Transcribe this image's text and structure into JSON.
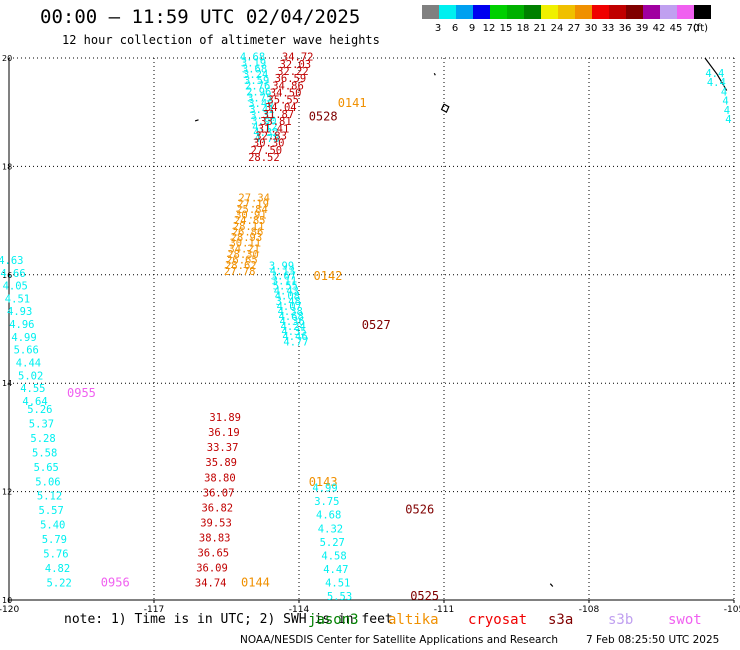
{
  "header": {
    "title": "00:00 — 11:59 UTC 02/04/2025",
    "subtitle": "12 hour collection of altimeter wave heights"
  },
  "color_scale": {
    "unit_label": "(ft)",
    "steps": [
      {
        "label": "3",
        "color": "#808080"
      },
      {
        "label": "6",
        "color": "#00f0f0"
      },
      {
        "label": "9",
        "color": "#00a0f0"
      },
      {
        "label": "12",
        "color": "#0000f0"
      },
      {
        "label": "15",
        "color": "#00d000"
      },
      {
        "label": "18",
        "color": "#00b000"
      },
      {
        "label": "21",
        "color": "#008000"
      },
      {
        "label": "24",
        "color": "#f0f000"
      },
      {
        "label": "27",
        "color": "#f0c000"
      },
      {
        "label": "30",
        "color": "#f09000"
      },
      {
        "label": "33",
        "color": "#f00000"
      },
      {
        "label": "36",
        "color": "#c00000"
      },
      {
        "label": "39",
        "color": "#800000"
      },
      {
        "label": "42",
        "color": "#a000a0"
      },
      {
        "label": "45",
        "color": "#c0a0f0"
      },
      {
        "label": "70",
        "color": "#f060f0"
      },
      {
        "label": "",
        "color": "#000000"
      }
    ]
  },
  "footer": {
    "note": "note:  1) Time is in UTC;  2) SWH is in feet",
    "credit": "NOAA/NESDIS Center for Satellite Applications and Research",
    "timestamp": "7 Feb 08:25:50 UTC 2025",
    "satellites": [
      {
        "name": "jason3",
        "color": "#008000"
      },
      {
        "name": "altika",
        "color": "#f09000"
      },
      {
        "name": "cryosat",
        "color": "#f00000"
      },
      {
        "name": "s3a",
        "color": "#800000"
      },
      {
        "name": "s3b",
        "color": "#c0a0f0"
      },
      {
        "name": "swot",
        "color": "#f060f0"
      }
    ]
  },
  "chart_data": {
    "type": "scatter",
    "title": "00:00 — 11:59 UTC 02/04/2025",
    "subtitle": "12 hour collection of altimeter wave heights",
    "xlabel": "",
    "ylabel": "",
    "xlim": [
      -120,
      -105
    ],
    "ylim": [
      10,
      20
    ],
    "x_ticks": [
      "-120",
      "-117",
      "-114",
      "-111",
      "-108",
      "-105"
    ],
    "y_ticks": [
      "20",
      "18",
      "16",
      "14",
      "12",
      "10"
    ],
    "grid": true,
    "coast_lines": [
      [
        [
          -105.6,
          20
        ],
        [
          -105.35,
          19.7
        ],
        [
          -105.15,
          19.4
        ]
      ],
      [
        [
          -111.0,
          19.15
        ],
        [
          -110.9,
          19.1
        ],
        [
          -110.95,
          19.0
        ],
        [
          -111.05,
          19.05
        ],
        [
          -111.0,
          19.15
        ]
      ],
      [
        [
          -111.2,
          19.72
        ],
        [
          -111.18,
          19.68
        ]
      ],
      [
        [
          -116.15,
          18.84
        ],
        [
          -116.08,
          18.86
        ]
      ],
      [
        [
          -108.8,
          10.3
        ],
        [
          -108.75,
          10.25
        ]
      ]
    ],
    "passes": [
      {
        "pass_label": "0955",
        "label_lon": -118.8,
        "label_lat": 13.75,
        "label_color": "#f060f0",
        "color": "#00f0f0",
        "lon_start": -119.7,
        "lon_end": -119.2,
        "lat_start": 16.2,
        "lat_end": 13.6,
        "values": [
          "4.63",
          "4.66",
          "4.05",
          "4.51",
          "4.93",
          "4.96",
          "4.99",
          "5.66",
          "4.44",
          "5.02",
          "4.55",
          "4.64"
        ]
      },
      {
        "pass_label": "0956",
        "label_lon": -118.1,
        "label_lat": 10.25,
        "label_color": "#f060f0",
        "color": "#00f0f0",
        "lon_start": -119.1,
        "lon_end": -118.7,
        "lat_start": 13.45,
        "lat_end": 10.25,
        "values": [
          "5.26",
          "5.37",
          "5.28",
          "5.58",
          "5.65",
          "5.06",
          "5.12",
          "5.57",
          "5.40",
          "5.79",
          "5.76",
          "4.82",
          "5.22"
        ]
      },
      {
        "pass_label": "0141",
        "label_lon": -113.2,
        "label_lat": 19.1,
        "label_color": "#f09000",
        "color": "#00f0f0",
        "lon_start": -114.7,
        "lon_end": -114.4,
        "lat_start": 19.95,
        "lat_end": 18.45,
        "values": [
          "4.68",
          "3.19",
          "3.68",
          "3.24",
          "3.59",
          "2.76",
          "2.96",
          "3.75",
          "3.40",
          "3.41",
          "3.31",
          "3.90",
          "4.12",
          "4.32",
          "4.78"
        ]
      },
      {
        "pass_label": "0528",
        "label_lon": -113.8,
        "label_lat": 18.85,
        "label_color": "#800000",
        "color": "#c00000",
        "lon_start": -113.7,
        "lon_end": -114.4,
        "lat_start": 19.95,
        "lat_end": 18.1,
        "values": [
          "34.72",
          "32.03",
          "32.22",
          "36.59",
          "34.86",
          "34.50",
          "35.55",
          "34.04",
          "31.87",
          "33.81",
          "31.41",
          "32.83",
          "30.30",
          "27.50",
          "28.52"
        ]
      },
      {
        "pass_label": "0142",
        "label_lon": -113.7,
        "label_lat": 15.9,
        "label_color": "#f09000",
        "color": "#f09000",
        "lon_start": -114.6,
        "lon_end": -114.9,
        "lat_start": 17.35,
        "lat_end": 16.0,
        "values": [
          "27.34",
          "27.19",
          "25.84",
          "30.91",
          "24.85",
          "28.11",
          "26.86",
          "28.93",
          "30.11",
          "34.21",
          "28.30",
          "26.65",
          "28.62",
          "27.78"
        ]
      },
      {
        "pass_label": "0527",
        "label_lon": -112.7,
        "label_lat": 15.0,
        "label_color": "#800000",
        "color": "#00f0f0",
        "lon_start": -114.1,
        "lon_end": -113.8,
        "lat_start": 16.1,
        "lat_end": 14.7,
        "values": [
          "3.99",
          "4.13",
          "3.67",
          "3.11",
          "5.55",
          "4.43",
          "4.08",
          "3.48",
          "4.07",
          "4.38",
          "4.68",
          "4.36",
          "4.24",
          "4.35",
          "4.46",
          "4.77"
        ]
      },
      {
        "pass_label": "0143",
        "label_lon": -113.8,
        "label_lat": 12.1,
        "label_color": "#f09000",
        "color": "#c00000",
        "lon_start": -115.2,
        "lon_end": -115.5,
        "lat_start": 13.3,
        "lat_end": 10.25,
        "values": [
          "31.89",
          "36.19",
          "33.37",
          "35.89",
          "38.80",
          "36.07",
          "36.82",
          "39.53",
          "38.83",
          "36.65",
          "36.09",
          "34.74"
        ]
      },
      {
        "pass_label": "0526",
        "label_lon": -111.8,
        "label_lat": 11.6,
        "label_color": "#800000",
        "color": "#00f0f0",
        "lon_start": -113.2,
        "lon_end": -112.9,
        "lat_start": 12.0,
        "lat_end": 10.0,
        "values": [
          "4.99",
          "3.75",
          "4.68",
          "4.32",
          "5.27",
          "4.58",
          "4.47",
          "4.51",
          "5.53"
        ]
      },
      {
        "pass_label": "0144",
        "label_lon": -115.2,
        "label_lat": 10.25,
        "label_color": "#f09000",
        "color": "#f09000",
        "lon_start": -115.5,
        "lon_end": -115.5,
        "lat_start": 10.25,
        "lat_end": 10.25,
        "values": []
      },
      {
        "pass_label": "0525",
        "label_lon": -111.7,
        "label_lat": 10.0,
        "label_color": "#800000",
        "color": "#00f0f0",
        "lon_start": -112.5,
        "lon_end": -112.5,
        "lat_start": 10.0,
        "lat_end": 10.0,
        "values": []
      },
      {
        "pass_label": "",
        "label_lon": -105,
        "label_lat": 19.0,
        "label_color": "#00f0f0",
        "color": "#00f0f0",
        "lon_start": -105.2,
        "lon_end": -105.05,
        "lat_start": 19.65,
        "lat_end": 18.8,
        "values": [
          "4.4",
          "4.4",
          "4",
          "4",
          "4",
          "4"
        ]
      }
    ]
  }
}
